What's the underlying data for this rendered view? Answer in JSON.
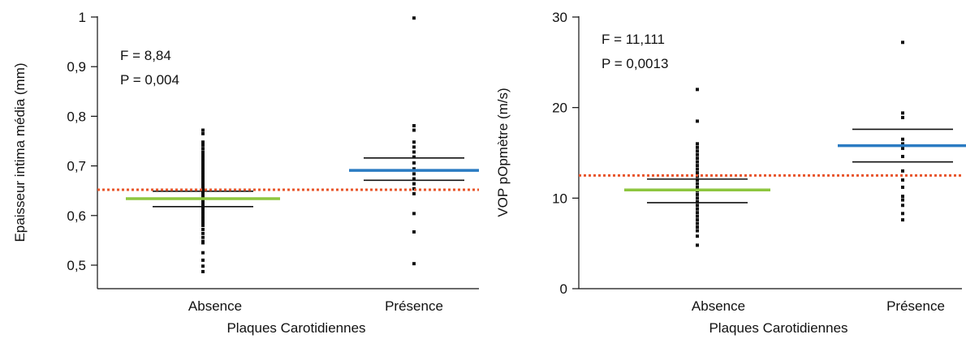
{
  "chart_data": [
    {
      "type": "scatter",
      "xlabel": "Plaques Carotidiennes",
      "ylabel": "Epaisseur intima média (mm)",
      "categories": [
        "Absence",
        "Présence"
      ],
      "ylim": [
        0.45,
        1.0
      ],
      "yticks": [
        "1",
        "0,9",
        "0,8",
        "0,7",
        "0,6",
        "0,5"
      ],
      "ytick_values": [
        1,
        0.9,
        0.8,
        0.7,
        0.6,
        0.5
      ],
      "stats": [
        "F = 8,84",
        "P = 0,004"
      ],
      "reference_line": {
        "value": 0.652,
        "color": "#e8542a",
        "style": "dotted"
      },
      "groups": [
        {
          "category": "Absence",
          "mean": 0.634,
          "ci_upper": 0.649,
          "ci_lower": 0.618,
          "mean_color": "#8dc63f",
          "points": [
            0.772,
            0.765,
            0.748,
            0.742,
            0.735,
            0.728,
            0.722,
            0.716,
            0.71,
            0.704,
            0.698,
            0.692,
            0.686,
            0.68,
            0.675,
            0.67,
            0.664,
            0.659,
            0.654,
            0.648,
            0.643,
            0.638,
            0.632,
            0.627,
            0.622,
            0.616,
            0.61,
            0.604,
            0.598,
            0.592,
            0.586,
            0.58,
            0.572,
            0.564,
            0.556,
            0.548,
            0.545,
            0.525,
            0.51,
            0.498,
            0.487
          ]
        },
        {
          "category": "Présence",
          "mean": 0.691,
          "ci_upper": 0.716,
          "ci_lower": 0.671,
          "mean_color": "#2a7bc2",
          "points": [
            0.998,
            0.781,
            0.772,
            0.748,
            0.738,
            0.728,
            0.718,
            0.706,
            0.694,
            0.684,
            0.674,
            0.664,
            0.654,
            0.644,
            0.604,
            0.567,
            0.503
          ]
        }
      ]
    },
    {
      "type": "scatter",
      "xlabel": "Plaques Carotidiennes",
      "ylabel": "VOP pOpmètre (m/s)",
      "categories": [
        "Absence",
        "Présence"
      ],
      "ylim": [
        0,
        30
      ],
      "yticks": [
        "30",
        "20",
        "10",
        "0"
      ],
      "ytick_values": [
        30,
        20,
        10,
        0
      ],
      "stats": [
        "F = 11,111",
        "P = 0,0013"
      ],
      "reference_line": {
        "value": 12.5,
        "color": "#e8542a",
        "style": "dotted"
      },
      "groups": [
        {
          "category": "Absence",
          "mean": 10.9,
          "ci_upper": 12.1,
          "ci_lower": 9.5,
          "mean_color": "#8dc63f",
          "points": [
            22.0,
            18.5,
            16.0,
            15.6,
            15.2,
            14.8,
            14.4,
            14.0,
            13.6,
            13.2,
            12.8,
            12.4,
            12.0,
            11.6,
            11.2,
            10.8,
            10.4,
            10.0,
            9.6,
            9.2,
            8.8,
            8.4,
            8.0,
            7.6,
            7.2,
            6.8,
            6.4,
            5.8,
            4.8
          ]
        },
        {
          "category": "Présence",
          "mean": 15.8,
          "ci_upper": 17.6,
          "ci_lower": 14.0,
          "mean_color": "#2a7bc2",
          "points": [
            27.2,
            19.4,
            18.9,
            16.5,
            16.0,
            15.5,
            14.6,
            13.0,
            12.0,
            11.2,
            10.2,
            9.8,
            9.2,
            8.3,
            7.6
          ]
        }
      ]
    }
  ]
}
